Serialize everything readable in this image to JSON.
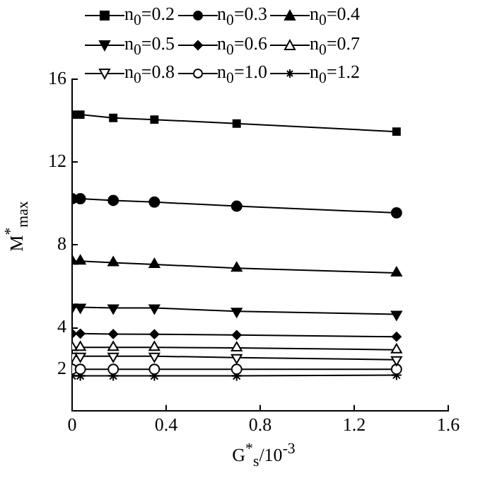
{
  "chart_data": {
    "type": "line",
    "xlabel": "G$^{*}$$_{s}$/10$^{-3}$",
    "ylabel": "M$^{*}$$_{max}$",
    "x": [
      0,
      0.035,
      0.175,
      0.35,
      0.7,
      1.38
    ],
    "xlim": [
      0,
      1.6
    ],
    "xticks": [
      0,
      0.4,
      0.8,
      1.2,
      1.6
    ],
    "ylim": [
      0,
      16
    ],
    "yticks": [
      2,
      4,
      8,
      12,
      16
    ],
    "grid": false,
    "legend": "top",
    "line_style": "solid",
    "series": [
      {
        "name": "n$_{0}$=0.2",
        "color": "#000000",
        "marker": "square",
        "values": [
          14.29,
          14.29,
          14.13,
          14.05,
          13.86,
          13.47
        ]
      },
      {
        "name": "n$_{0}$=0.3",
        "color": "#000000",
        "marker": "circle",
        "values": [
          10.23,
          10.23,
          10.15,
          10.07,
          9.87,
          9.55
        ]
      },
      {
        "name": "n$_{0}$=0.4",
        "color": "#000000",
        "marker": "triangle",
        "values": [
          7.22,
          7.22,
          7.14,
          7.06,
          6.88,
          6.65
        ]
      },
      {
        "name": "n$_{0}$=0.5",
        "color": "#000000",
        "marker": "triangle-down",
        "values": [
          4.99,
          4.99,
          4.96,
          4.96,
          4.8,
          4.65
        ]
      },
      {
        "name": "n$_{0}$=0.6",
        "color": "#000000",
        "marker": "diamond",
        "values": [
          3.72,
          3.72,
          3.7,
          3.69,
          3.65,
          3.57
        ]
      },
      {
        "name": "n$_{0}$=0.7",
        "color": "#000000",
        "marker": "triangle-open",
        "values": [
          3.06,
          3.06,
          3.06,
          3.06,
          3.03,
          2.94
        ]
      },
      {
        "name": "n$_{0}$=0.8",
        "color": "#000000",
        "marker": "triangle-down-open",
        "values": [
          2.63,
          2.63,
          2.63,
          2.63,
          2.56,
          2.46
        ]
      },
      {
        "name": "n$_{0}$=1.0",
        "color": "#000000",
        "marker": "circle-open",
        "values": [
          2,
          2,
          2,
          2,
          2,
          2
        ]
      },
      {
        "name": "n$_{0}$=1.2",
        "color": "#000000",
        "marker": "cross",
        "values": [
          1.68,
          1.68,
          1.68,
          1.68,
          1.68,
          1.72
        ]
      }
    ]
  }
}
